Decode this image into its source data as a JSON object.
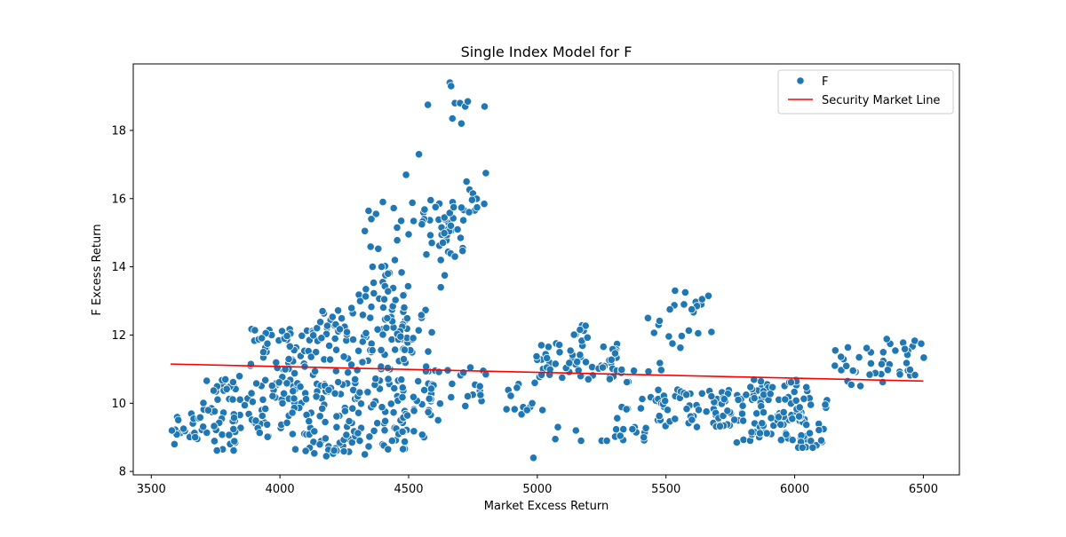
{
  "chart_data": {
    "type": "scatter",
    "title": "Single Index Model for F",
    "xlabel": "Market Excess Return",
    "ylabel": "F Excess Return",
    "xlim": [
      3430,
      6640
    ],
    "ylim": [
      7.9,
      19.95
    ],
    "xticks": [
      3500,
      4000,
      4500,
      5000,
      5500,
      6000,
      6500
    ],
    "yticks": [
      8,
      10,
      12,
      14,
      16,
      18
    ],
    "legend_position": "top-right",
    "legend": [
      {
        "label": "F",
        "kind": "marker",
        "color": "#1f77b4"
      },
      {
        "label": "Security Market Line",
        "kind": "line",
        "color": "#ff0000"
      }
    ],
    "colors": {
      "points": "#1f77b4",
      "line": "#ff0000"
    },
    "line": {
      "x": [
        3575,
        6500
      ],
      "y": [
        11.15,
        10.65
      ]
    },
    "clusters": [
      {
        "x": [
          3580,
          3700
        ],
        "y": [
          8.8,
          9.7
        ],
        "n": 20
      },
      {
        "x": [
          3700,
          3880
        ],
        "y": [
          8.6,
          10.8
        ],
        "n": 55
      },
      {
        "x": [
          3880,
          4100
        ],
        "y": [
          9.0,
          12.2
        ],
        "n": 95
      },
      {
        "x": [
          4100,
          4300
        ],
        "y": [
          8.5,
          12.8
        ],
        "n": 110
      },
      {
        "x": [
          4300,
          4500
        ],
        "y": [
          8.6,
          13.6
        ],
        "n": 110
      },
      {
        "x": [
          4450,
          4600
        ],
        "y": [
          9.0,
          12.9
        ],
        "n": 45
      },
      {
        "x": [
          4330,
          4520
        ],
        "y": [
          13.0,
          16.0
        ],
        "n": 20
      },
      {
        "x": [
          4550,
          4720
        ],
        "y": [
          14.3,
          16.0
        ],
        "n": 40
      },
      {
        "x": [
          4720,
          4800
        ],
        "y": [
          15.6,
          16.3
        ],
        "n": 8
      },
      {
        "x": [
          4560,
          4800
        ],
        "y": [
          9.5,
          11.2
        ],
        "n": 25
      },
      {
        "x": [
          4850,
          4980
        ],
        "y": [
          9.6,
          10.6
        ],
        "n": 10
      },
      {
        "x": [
          4990,
          5320
        ],
        "y": [
          10.7,
          11.8
        ],
        "n": 60
      },
      {
        "x": [
          5130,
          5200
        ],
        "y": [
          11.8,
          12.3
        ],
        "n": 8
      },
      {
        "x": [
          5320,
          5500
        ],
        "y": [
          9.8,
          11.3
        ],
        "n": 20
      },
      {
        "x": [
          5300,
          5480
        ],
        "y": [
          8.9,
          9.6
        ],
        "n": 15
      },
      {
        "x": [
          5450,
          5800
        ],
        "y": [
          9.3,
          10.4
        ],
        "n": 70
      },
      {
        "x": [
          5450,
          5680
        ],
        "y": [
          11.5,
          13.3
        ],
        "n": 12
      },
      {
        "x": [
          5800,
          6050
        ],
        "y": [
          8.9,
          10.7
        ],
        "n": 85
      },
      {
        "x": [
          6000,
          6130
        ],
        "y": [
          8.7,
          10.2
        ],
        "n": 25
      },
      {
        "x": [
          6150,
          6350
        ],
        "y": [
          10.5,
          11.7
        ],
        "n": 25
      },
      {
        "x": [
          6350,
          6510
        ],
        "y": [
          10.8,
          11.9
        ],
        "n": 22
      }
    ],
    "points": [
      [
        4660,
        19.4
      ],
      [
        4665,
        19.3
      ],
      [
        4680,
        18.8
      ],
      [
        4700,
        18.8
      ],
      [
        4720,
        18.7
      ],
      [
        4730,
        18.85
      ],
      [
        4575,
        18.75
      ],
      [
        4795,
        18.7
      ],
      [
        4670,
        18.35
      ],
      [
        4705,
        18.2
      ],
      [
        4540,
        17.3
      ],
      [
        4490,
        16.7
      ],
      [
        4800,
        16.75
      ],
      [
        4725,
        16.5
      ],
      [
        4400,
        15.9
      ],
      [
        4455,
        15.15
      ],
      [
        4355,
        15.4
      ],
      [
        4330,
        15.05
      ],
      [
        4735,
        15.6
      ],
      [
        4675,
        15.75
      ],
      [
        4360,
        14.0
      ],
      [
        4395,
        14.0
      ],
      [
        4420,
        13.8
      ],
      [
        4680,
        14.3
      ],
      [
        4625,
        14.2
      ],
      [
        4590,
        14.7
      ],
      [
        4640,
        13.75
      ],
      [
        4625,
        13.4
      ],
      [
        5535,
        13.3
      ],
      [
        5515,
        12.75
      ],
      [
        5575,
        13.25
      ],
      [
        5620,
        12.85
      ],
      [
        5640,
        13.05
      ],
      [
        5665,
        13.15
      ],
      [
        5570,
        12.9
      ],
      [
        5600,
        12.75
      ],
      [
        5625,
        12.05
      ],
      [
        5430,
        12.5
      ],
      [
        5525,
        11.75
      ],
      [
        4985,
        8.4
      ],
      [
        4310,
        8.9
      ],
      [
        4330,
        8.5
      ],
      [
        4180,
        8.45
      ],
      [
        4100,
        8.6
      ],
      [
        4060,
        8.65
      ],
      [
        4420,
        8.65
      ],
      [
        5070,
        8.95
      ],
      [
        5170,
        8.9
      ],
      [
        5080,
        9.3
      ],
      [
        5150,
        9.2
      ],
      [
        5250,
        8.9
      ],
      [
        5270,
        8.9
      ],
      [
        5775,
        8.85
      ],
      [
        6030,
        8.7
      ],
      [
        6070,
        8.7
      ],
      [
        5020,
        9.8
      ],
      [
        4990,
        10.6
      ],
      [
        4980,
        10.0
      ],
      [
        4960,
        9.8
      ],
      [
        3580,
        9.2
      ],
      [
        3590,
        8.8
      ],
      [
        4740,
        11.05
      ],
      [
        4790,
        10.95
      ],
      [
        4800,
        10.85
      ]
    ]
  }
}
